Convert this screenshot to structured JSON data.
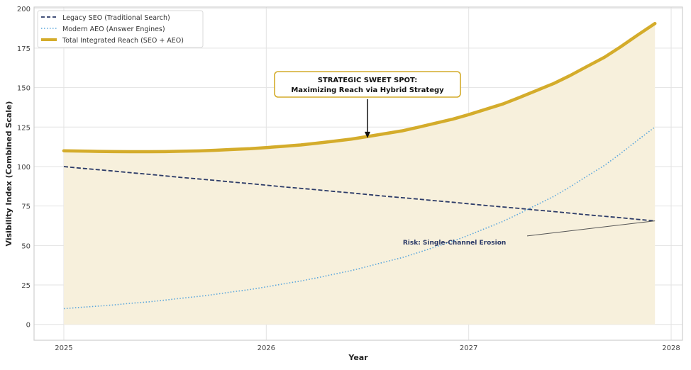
{
  "chart_data": {
    "type": "line",
    "title": "",
    "xlabel": "Year",
    "ylabel": "Visibility Index (Combined Scale)",
    "xlim": [
      2024.853,
      2028.056
    ],
    "ylim": [
      -10,
      201
    ],
    "xticks": [
      2025,
      2026,
      2027,
      2028
    ],
    "yticks": [
      0,
      25,
      50,
      75,
      100,
      125,
      150,
      175,
      200
    ],
    "grid": true,
    "legend_position": "top-left",
    "x": [
      2025.0,
      2025.08,
      2025.17,
      2025.25,
      2025.33,
      2025.42,
      2025.5,
      2025.58,
      2025.67,
      2025.75,
      2025.83,
      2025.92,
      2026.0,
      2026.08,
      2026.17,
      2026.25,
      2026.33,
      2026.42,
      2026.5,
      2026.58,
      2026.67,
      2026.75,
      2026.83,
      2026.92,
      2027.0,
      2027.08,
      2027.17,
      2027.25,
      2027.33,
      2027.42,
      2027.5,
      2027.58,
      2027.67,
      2027.75,
      2027.83,
      2027.92
    ],
    "series": [
      {
        "name": "Legacy SEO (Traditional Search)",
        "style": "dashed",
        "color": "#2b3a67",
        "values": [
          100,
          99.0,
          98.0,
          97.1,
          96.1,
          95.1,
          94.1,
          93.1,
          92.1,
          91.2,
          90.2,
          89.2,
          88.2,
          87.2,
          86.2,
          85.3,
          84.3,
          83.3,
          82.3,
          81.3,
          80.3,
          79.4,
          78.4,
          77.4,
          76.4,
          75.4,
          74.4,
          73.5,
          72.5,
          71.5,
          70.5,
          69.5,
          68.5,
          67.6,
          66.6,
          65.6
        ]
      },
      {
        "name": "Modern AEO (Answer Engines)",
        "style": "dotted",
        "color": "#5aa6dc",
        "values": [
          10.0,
          10.8,
          11.6,
          12.4,
          13.4,
          14.3,
          15.4,
          16.6,
          17.8,
          19.1,
          20.6,
          22.1,
          23.8,
          25.6,
          27.5,
          29.5,
          31.7,
          34.1,
          36.7,
          39.4,
          42.3,
          45.5,
          48.9,
          52.6,
          56.5,
          60.7,
          65.3,
          70.2,
          75.4,
          81.1,
          87.1,
          93.6,
          100.7,
          108.2,
          116.3,
          125.0
        ]
      },
      {
        "name": "Total Integrated Reach (SEO + AEO)",
        "style": "solid",
        "color": "#d4ac2b",
        "fill": "#f7f0dc",
        "values": [
          110.0,
          109.8,
          109.6,
          109.5,
          109.4,
          109.4,
          109.5,
          109.7,
          109.9,
          110.3,
          110.8,
          111.3,
          112.0,
          112.8,
          113.7,
          114.8,
          116.0,
          117.4,
          119.0,
          120.7,
          122.6,
          124.9,
          127.3,
          130.0,
          132.9,
          136.1,
          139.7,
          143.7,
          147.9,
          152.6,
          157.6,
          163.1,
          169.2,
          175.8,
          182.9,
          190.6
        ]
      }
    ],
    "annotations": [
      {
        "text_line1": "STRATEGIC SWEET SPOT:",
        "text_line2": "Maximizing Reach via Hybrid Strategy",
        "text_xy": [
          2026.5,
          151
        ],
        "arrow_to": [
          2026.5,
          118
        ]
      },
      {
        "text": "Risk: Single-Channel Erosion",
        "text_xy": [
          2026.85,
          52
        ],
        "arrow_to": [
          2027.92,
          65.6
        ]
      }
    ]
  }
}
